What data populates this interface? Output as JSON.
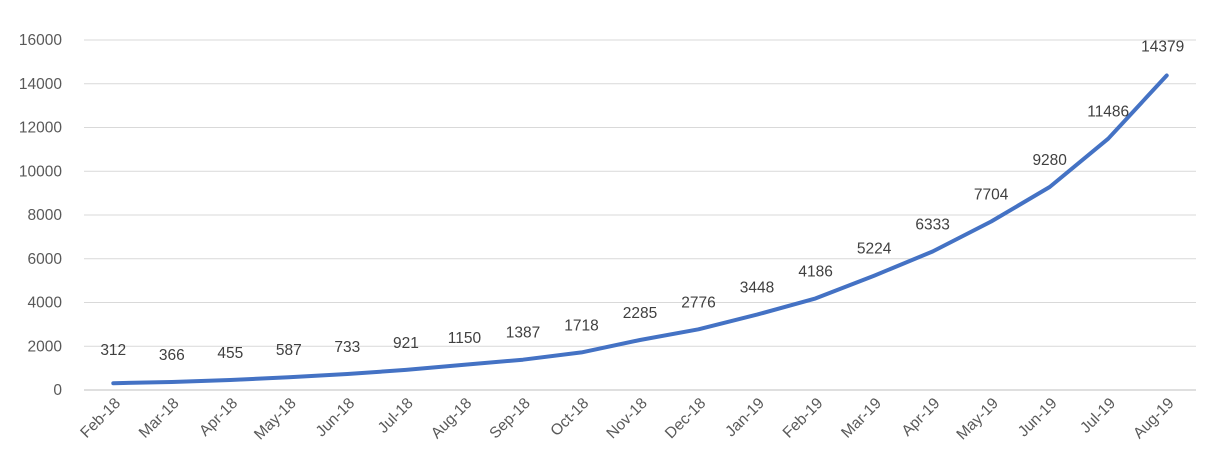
{
  "chart_data": {
    "type": "line",
    "title": "",
    "xlabel": "",
    "ylabel": "",
    "categories": [
      "Feb-18",
      "Mar-18",
      "Apr-18",
      "May-18",
      "Jun-18",
      "Jul-18",
      "Aug-18",
      "Sep-18",
      "Oct-18",
      "Nov-18",
      "Dec-18",
      "Jan-19",
      "Feb-19",
      "Mar-19",
      "Apr-19",
      "May-19",
      "Jun-19",
      "Jul-19",
      "Aug-19"
    ],
    "series": [
      {
        "values": [
          312,
          366,
          455,
          587,
          733,
          921,
          1150,
          1387,
          1718,
          2285,
          2776,
          3448,
          4186,
          5224,
          6333,
          7704,
          9280,
          11486,
          14379
        ]
      }
    ],
    "ylim": [
      0,
      16000
    ],
    "yticks": [
      0,
      2000,
      4000,
      6000,
      8000,
      10000,
      12000,
      14000,
      16000
    ],
    "grid": true,
    "legend": "none",
    "data_labels": true,
    "colors": {
      "series": "#4472c4",
      "grid": "#d9d9d9"
    }
  }
}
